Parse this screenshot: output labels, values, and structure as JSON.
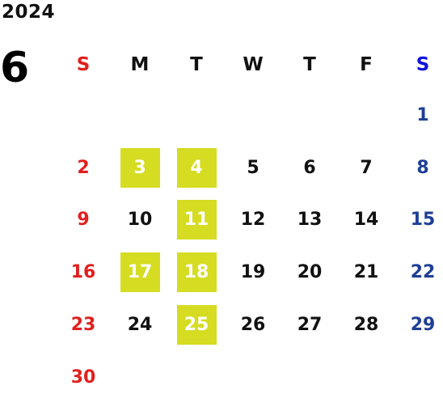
{
  "year": "2024",
  "month": "6",
  "weekdays": [
    "S",
    "M",
    "T",
    "W",
    "T",
    "F",
    "S"
  ],
  "weeks": [
    [
      "",
      "",
      "",
      "",
      "",
      "",
      "1"
    ],
    [
      "2",
      "3",
      "4",
      "5",
      "6",
      "7",
      "8"
    ],
    [
      "9",
      "10",
      "11",
      "12",
      "13",
      "14",
      "15"
    ],
    [
      "16",
      "17",
      "18",
      "19",
      "20",
      "21",
      "22"
    ],
    [
      "23",
      "24",
      "25",
      "26",
      "27",
      "28",
      "29"
    ],
    [
      "30",
      "",
      "",
      "",
      "",
      "",
      ""
    ]
  ],
  "highlighted_days": [
    "3",
    "4",
    "11",
    "17",
    "18",
    "25"
  ],
  "colors": {
    "highlight": "#d5dc22",
    "sunday": "#e0201e",
    "saturday": "#1f3f95",
    "saturday_header": "#1010e0",
    "text": "#111111"
  }
}
